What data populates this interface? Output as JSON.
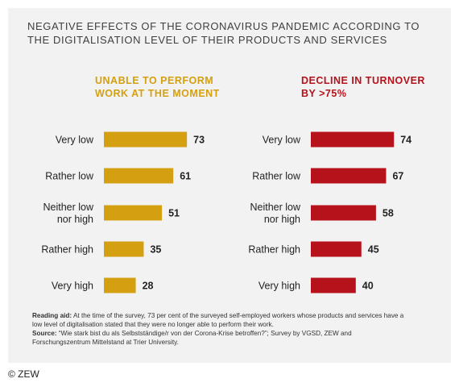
{
  "title_lines": [
    "NEGATIVE EFFECTS OF THE CORONAVIRUS PANDEMIC ACCORDING TO",
    "THE DIGITALISATION LEVEL OF THEIR PRODUCTS AND SERVICES"
  ],
  "chart_data": [
    {
      "type": "bar",
      "orientation": "horizontal",
      "title_lines": [
        "UNABLE TO PERFORM",
        "WORK AT THE MOMENT"
      ],
      "categories": [
        [
          "Very low"
        ],
        [
          "Rather low"
        ],
        [
          "Neither low",
          "nor high"
        ],
        [
          "Rather high"
        ],
        [
          "Very high"
        ]
      ],
      "values": [
        73,
        61,
        51,
        35,
        28
      ],
      "color": "#d4a012",
      "grid": false
    },
    {
      "type": "bar",
      "orientation": "horizontal",
      "title_lines": [
        "DECLINE IN TURNOVER",
        "BY >75%"
      ],
      "categories": [
        [
          "Very low"
        ],
        [
          "Rather low"
        ],
        [
          "Neither low",
          "nor high"
        ],
        [
          "Rather high"
        ],
        [
          "Very high"
        ]
      ],
      "values": [
        74,
        67,
        58,
        45,
        40
      ],
      "color": "#b5121b",
      "grid": false
    }
  ],
  "notes": {
    "reading_aid_label": "Reading aid:",
    "reading_aid_text": " At the time of the survey, 73 per cent of the surveyed self-employed workers whose products and services have a low level of digitalisation stated that they were no longer able to perform their work.",
    "source_label": "Source:",
    "source_text": " “Wie stark bist du als Selbstständige/r von der Corona-Krise betroffen?”; Survey by VGSD, ZEW and Forschungszentrum Mittelstand at Trier University."
  },
  "copyright": "© ZEW"
}
